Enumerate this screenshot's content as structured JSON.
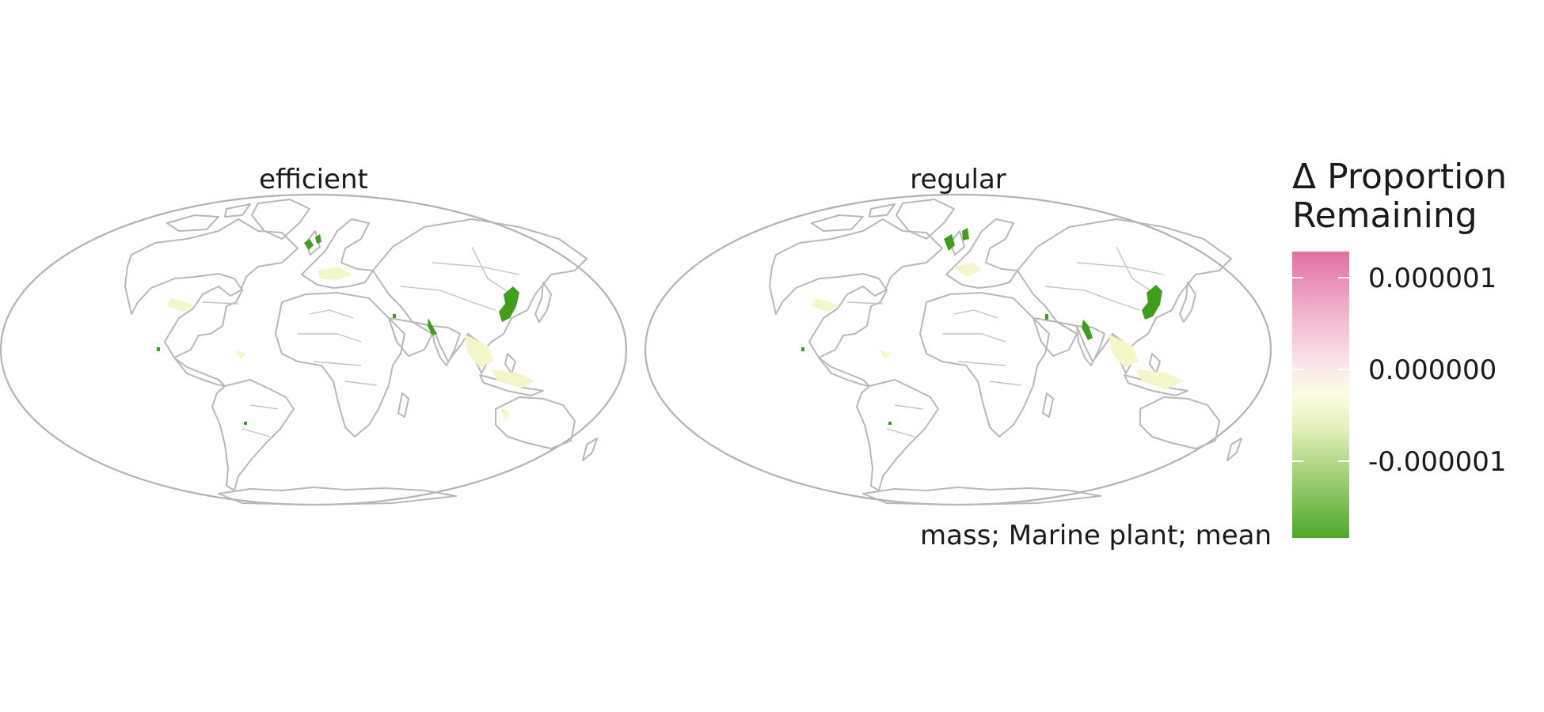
{
  "panels": [
    {
      "title": "efficient"
    },
    {
      "title": "regular"
    }
  ],
  "legend": {
    "title_line1": "Δ Proportion",
    "title_line2": "Remaining",
    "ticks": [
      "0.000001",
      "0.000000",
      "-0.000001"
    ],
    "colors": {
      "high": "#e26fa3",
      "mid": "#fbfce0",
      "low": "#4ea82a"
    }
  },
  "caption": "mass; Marine plant; mean",
  "colors": {
    "coastline": "#b8b8b8",
    "hotspot": "#3f9e1e",
    "light_change": "#f3f6c8"
  }
}
